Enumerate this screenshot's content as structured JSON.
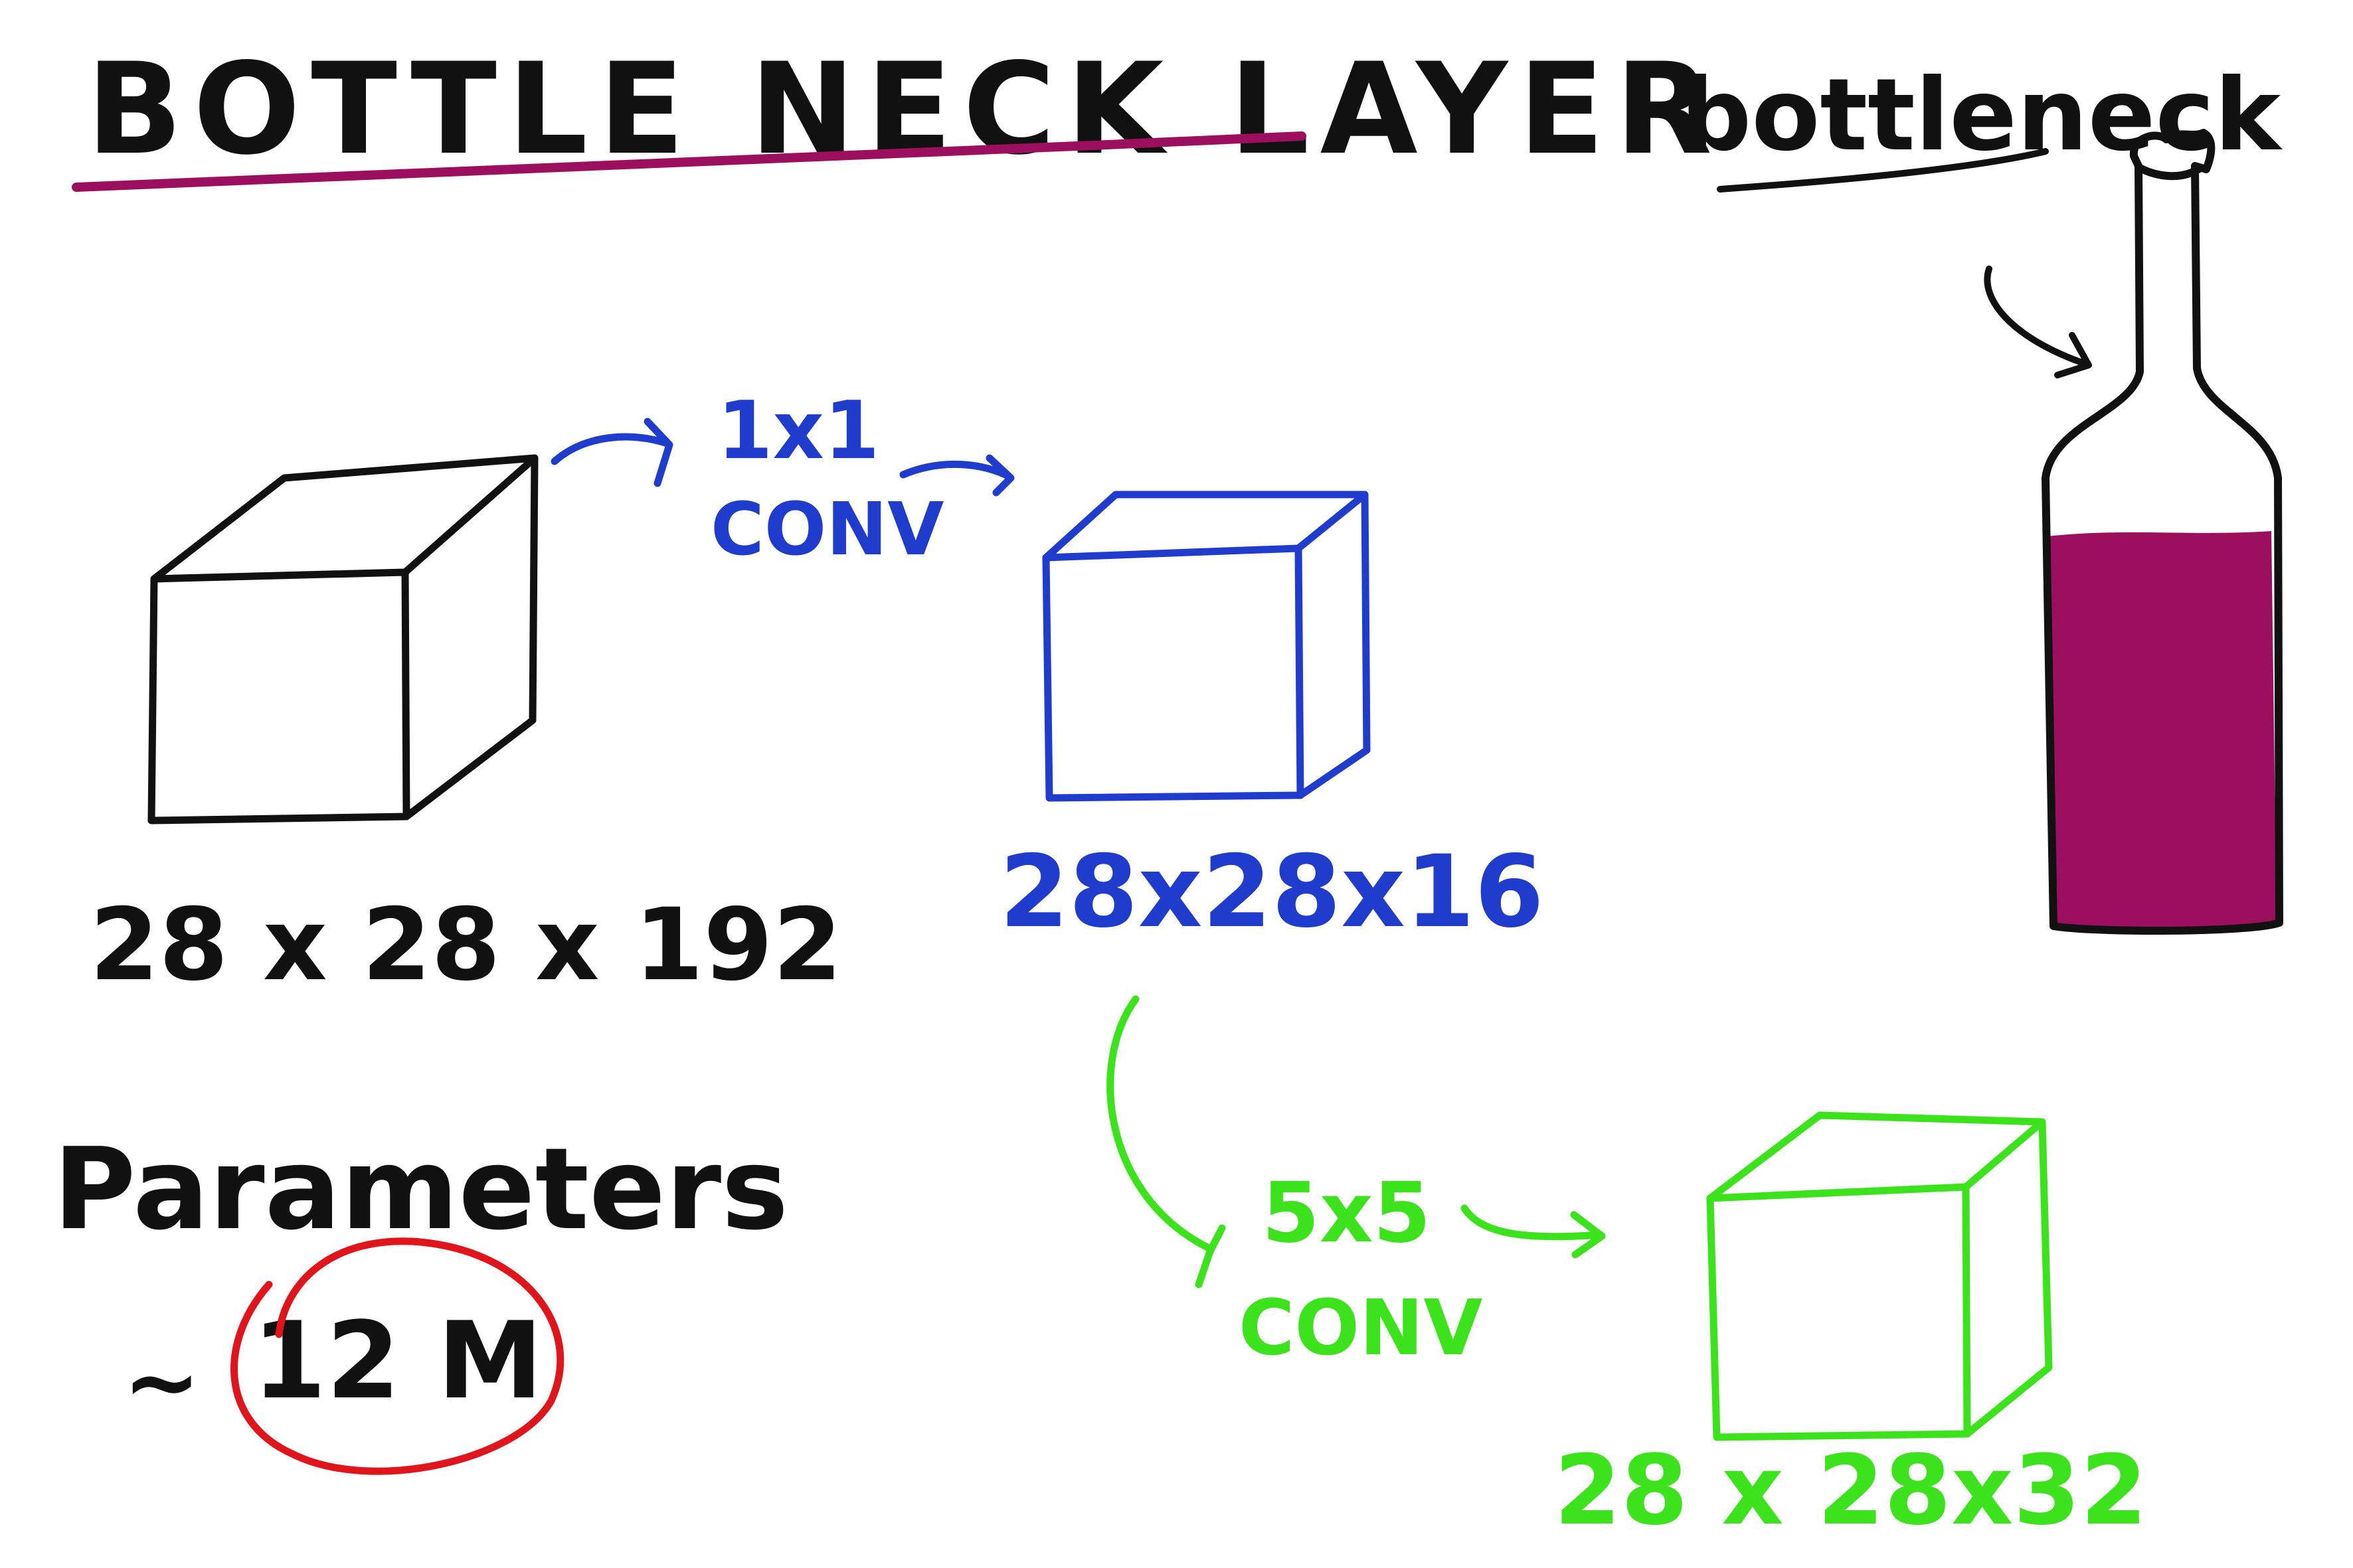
{
  "title": "BOTTLE NECK LAYER",
  "bottle_label": "bottleneck",
  "input_dims": "28 x 28 x 192",
  "conv1_line1": "1x1",
  "conv1_line2": "CONV",
  "mid_dims": "28x28x16",
  "conv2_line1": "5x5",
  "conv2_line2": "CONV",
  "output_dims": "28 x 28x32",
  "params_label": "Parameters",
  "params_approx": "~",
  "params_value": "12 M",
  "colors": {
    "black": "#111111",
    "blue": "#1f3ccc",
    "green": "#3ce21c",
    "magenta": "#9c0f5e",
    "red": "#e0141b"
  }
}
